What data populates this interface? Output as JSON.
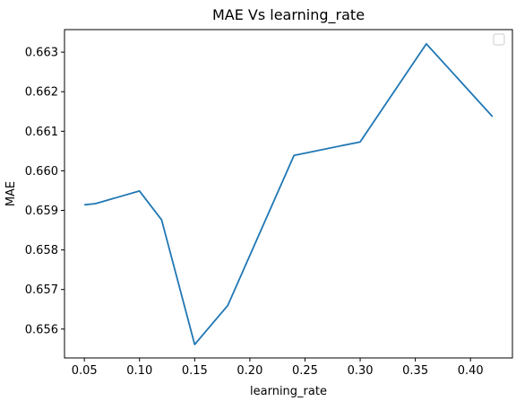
{
  "chart_data": {
    "type": "line",
    "title": "MAE Vs learning_rate",
    "xlabel": "learning_rate",
    "ylabel": "MAE",
    "xlim": [
      0.032,
      0.438
    ],
    "ylim": [
      0.65527,
      0.66357
    ],
    "xticks": [
      0.05,
      0.1,
      0.15,
      0.2,
      0.25,
      0.3,
      0.35,
      0.4
    ],
    "xtick_labels": [
      "0.05",
      "0.10",
      "0.15",
      "0.20",
      "0.25",
      "0.30",
      "0.35",
      "0.40"
    ],
    "yticks": [
      0.656,
      0.657,
      0.658,
      0.659,
      0.66,
      0.661,
      0.662,
      0.663
    ],
    "ytick_labels": [
      "0.656",
      "0.657",
      "0.658",
      "0.659",
      "0.660",
      "0.661",
      "0.662",
      "0.663"
    ],
    "grid": false,
    "legend": "top-right (empty)",
    "series": [
      {
        "color": "#1f77b4",
        "x": [
          0.05,
          0.06,
          0.1,
          0.12,
          0.15,
          0.18,
          0.24,
          0.3,
          0.36,
          0.42
        ],
        "y": [
          0.65914,
          0.65917,
          0.65949,
          0.65876,
          0.65561,
          0.6566,
          0.66039,
          0.66073,
          0.66321,
          0.66137
        ]
      }
    ]
  }
}
